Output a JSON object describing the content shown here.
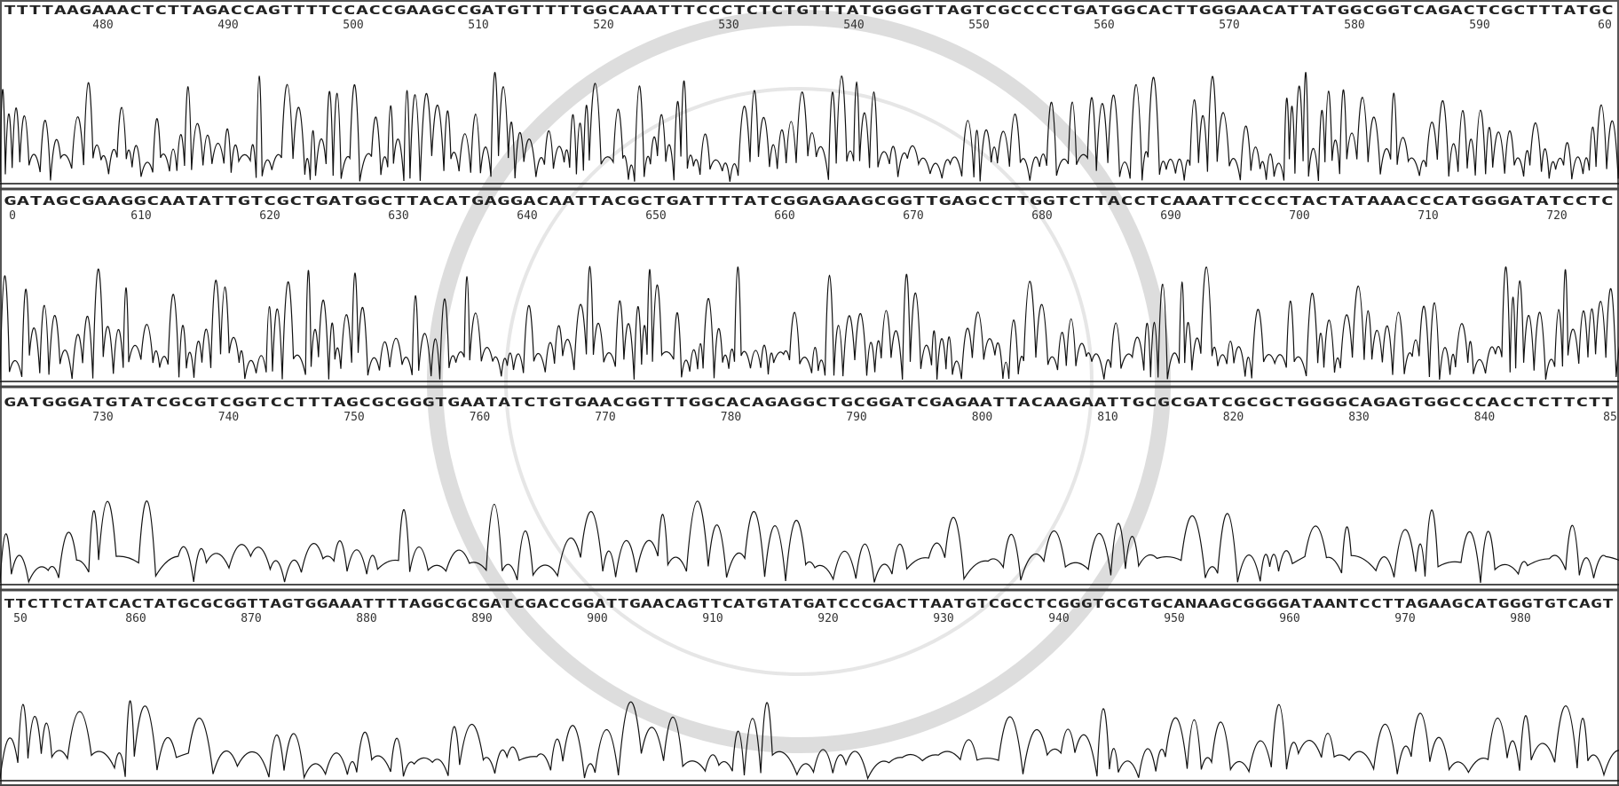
{
  "rows": [
    {
      "sequence": "TTTTAAGAAACTCTTAGACCAGTTTTCCACCGAAGCCGATGTTTTTGGCAAATTTCCCTCTCTGTTTATGGGGTTAGTCGCCCCTGATGGCACTTGGGAACATTATGGCGGTCAGACTCGCTTTATGC",
      "positions": [
        "480",
        "490",
        "500",
        "510",
        "520",
        "530",
        "540",
        "550",
        "560",
        "570",
        "580",
        "590",
        "60"
      ]
    },
    {
      "sequence": "GATAGCGAAGGCAATATTGTCGCTGATGGCTTACATGAGGACAATTACGCTGATTTTATCGGAGAAGCGGTTGAGCCTTGGTCTTACCTCAAATTCCCCTACTATAAACCCATGGGATATCCTC",
      "positions": [
        "0",
        "610",
        "620",
        "630",
        "640",
        "650",
        "660",
        "670",
        "680",
        "690",
        "700",
        "710",
        "720"
      ]
    },
    {
      "sequence": "GATGGGATGTATCGCGTCGGTCCTTTAGCGCGGGTGAATATCTGTGAACGGTTTGGCACAGAGGCTGCGGATCGAGAATTACAAGAATTGCGCGATCGCGCTGGGGCAGAGTGGCCCACCTCTTCTT",
      "positions": [
        "730",
        "740",
        "750",
        "760",
        "770",
        "780",
        "790",
        "800",
        "810",
        "820",
        "830",
        "840",
        "85"
      ]
    },
    {
      "sequence": "TTCTTCTATCACTATGCGCGGTTAGTGGAAATTTTAGGCGCGATCGACCGGATTGAACAGTTCATGTATGATCCCGACTTAATGTCGCCTCGGGTGCGTGCANAAGCGGGGATAANTCCTTAGAAGCATGGGTGTCAGT",
      "positions": [
        "50",
        "860",
        "870",
        "880",
        "890",
        "900",
        "910",
        "920",
        "930",
        "940",
        "950",
        "960",
        "970",
        "980"
      ]
    }
  ]
}
